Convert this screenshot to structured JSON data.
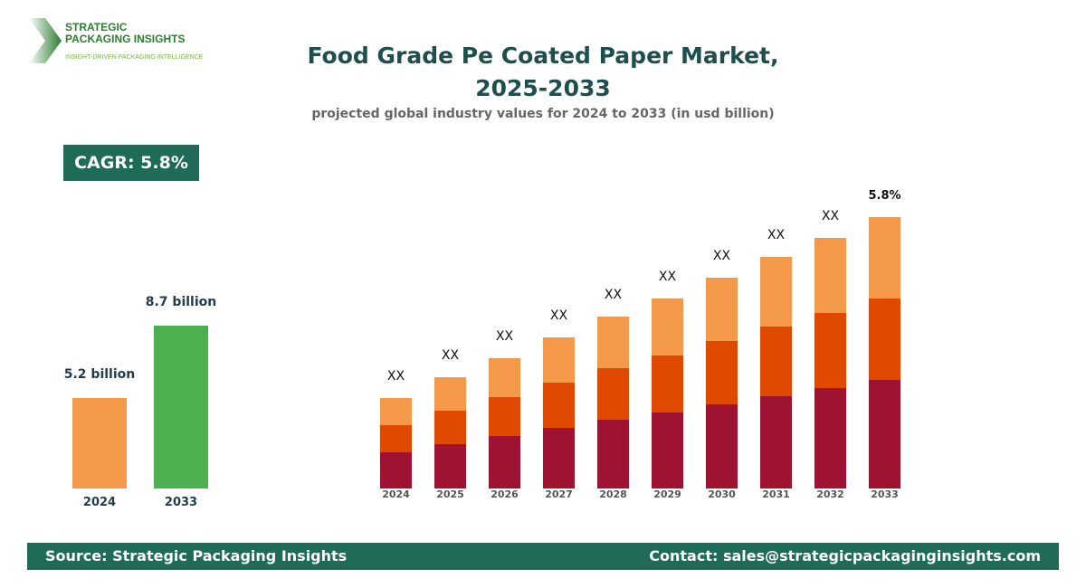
{
  "logo": {
    "line1": "STRATEGIC",
    "line2": "PACKAGING INSIGHTS",
    "tagline": "INSIGHT-DRIVEN PACKAGING INTELLIGENCE"
  },
  "title_line1": "Food Grade Pe Coated Paper Market,",
  "title_line2": "2025-2033",
  "subtitle": "projected global industry values for 2024 to 2033 (in usd billion)",
  "cagr_label": "CAGR: 5.8%",
  "summary": {
    "bars": [
      {
        "year": "2024",
        "label": "5.2 billion",
        "value": 5.2,
        "color": "#F4994A"
      },
      {
        "year": "2033",
        "label": "8.7 billion",
        "value": 8.7,
        "color": "#4CB050"
      }
    ]
  },
  "chart_data": {
    "type": "bar",
    "stacked": true,
    "categories": [
      "2024",
      "2025",
      "2026",
      "2027",
      "2028",
      "2029",
      "2030",
      "2031",
      "2032",
      "2033"
    ],
    "series": [
      {
        "values": [
          40,
          49,
          58,
          67,
          76,
          84,
          93,
          102,
          111,
          120
        ],
        "color": "#9E1232"
      },
      {
        "values": [
          30,
          37,
          43,
          50,
          57,
          63,
          70,
          77,
          83,
          90
        ],
        "color": "#E04A00"
      },
      {
        "values": [
          30,
          37,
          43,
          50,
          57,
          63,
          70,
          77,
          83,
          90
        ],
        "color": "#F4994A"
      }
    ],
    "data_labels": [
      "XX",
      "XX",
      "XX",
      "XX",
      "XX",
      "XX",
      "XX",
      "XX",
      "XX",
      "5.8%"
    ],
    "grid": false
  },
  "footer": {
    "source": "Source: Strategic Packaging Insights",
    "contact": "Contact: sales@strategicpackaginginsights.com"
  }
}
